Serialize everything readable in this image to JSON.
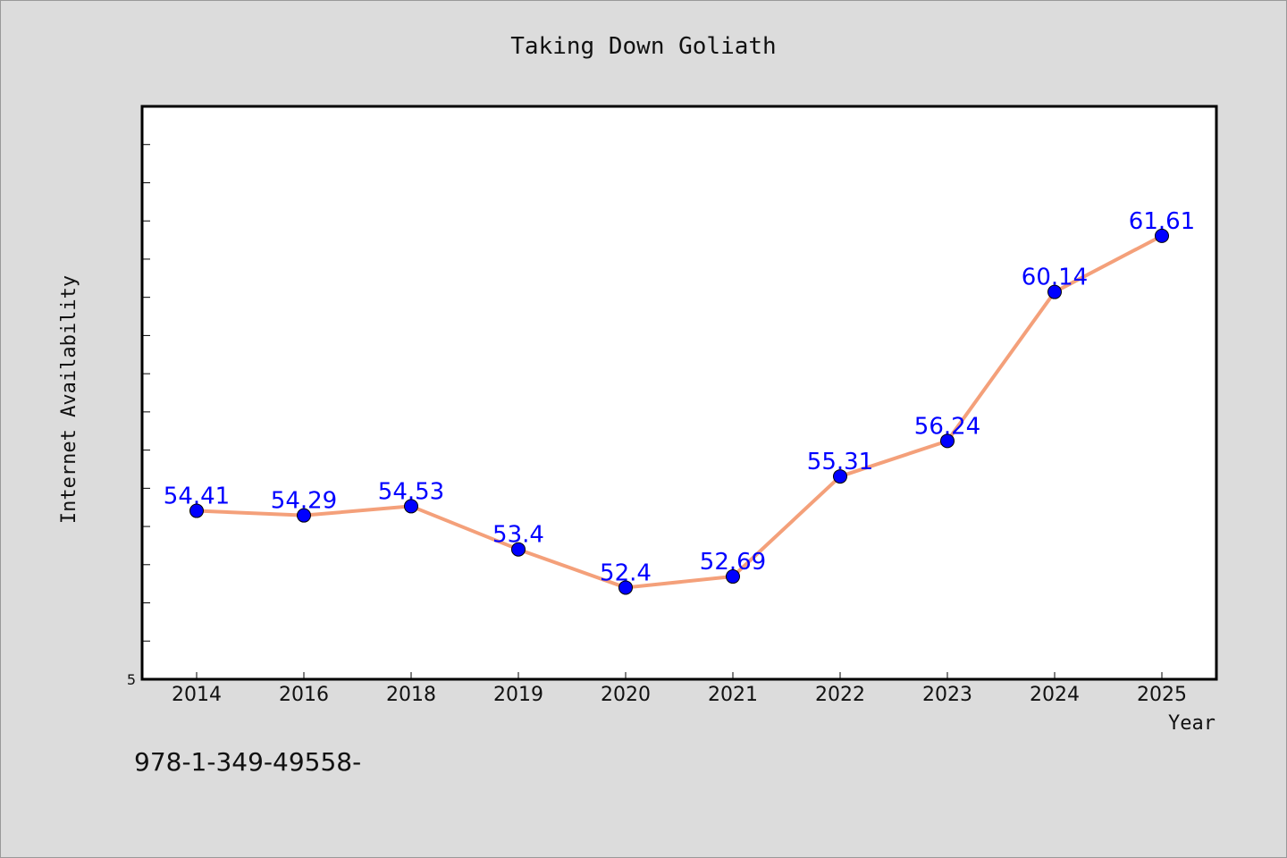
{
  "chart_data": {
    "type": "line",
    "title": "Taking Down Goliath",
    "xlabel": "Year",
    "ylabel": "Internet Availability",
    "categories": [
      "2014",
      "2016",
      "2018",
      "2019",
      "2020",
      "2021",
      "2022",
      "2023",
      "2024",
      "2025"
    ],
    "series": [
      {
        "values": [
          54.41,
          54.29,
          54.53,
          53.4,
          52.4,
          52.69,
          55.31,
          56.24,
          60.14,
          61.61
        ],
        "data_labels": [
          "54.41",
          "54.29",
          "54.53",
          "53.4",
          "52.4",
          "52.69",
          "55.31",
          "56.24",
          "60.14",
          "61.61"
        ]
      }
    ],
    "ylim": [
      50.0,
      65.0
    ],
    "y_visible_tick_label": "5",
    "grid": false,
    "legend": "none",
    "colors": {
      "line": "#f4a07a",
      "marker": "#0000ff",
      "labels": "#0000ff",
      "background": "#dcdcdc",
      "plot_bg": "#ffffff"
    }
  },
  "footer": {
    "text": "978-1-349-49558-"
  }
}
